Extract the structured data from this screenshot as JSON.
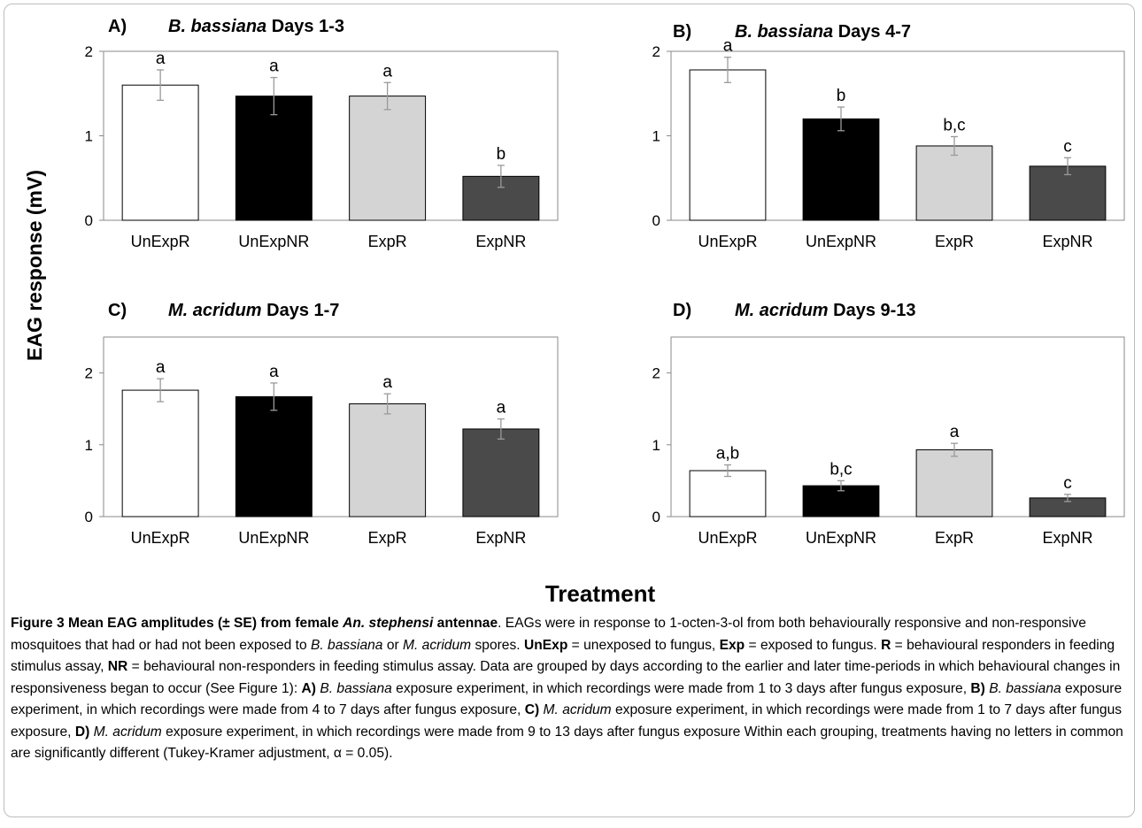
{
  "figure": {
    "ylabel": "EAG response (mV)",
    "xlabel": "Treatment",
    "colors": {
      "UnExpR": "#ffffff",
      "UnExpNR": "#000000",
      "ExpR": "#d4d4d4",
      "ExpNR": "#4a4a4a",
      "error_bar": "#9a9a9a"
    }
  },
  "chart_data": [
    {
      "type": "bar",
      "panel_letter": "A)",
      "title_italic": "B. bassiana",
      "title_rest": " Days 1-3",
      "categories": [
        "UnExpR",
        "UnExpNR",
        "ExpR",
        "ExpNR"
      ],
      "values": [
        1.6,
        1.47,
        1.47,
        0.52
      ],
      "errors": [
        0.18,
        0.22,
        0.16,
        0.13
      ],
      "letters": [
        "a",
        "a",
        "a",
        "b"
      ],
      "yticks": [
        "0",
        "1",
        "2"
      ],
      "ylim": [
        0,
        2
      ]
    },
    {
      "type": "bar",
      "panel_letter": "B)",
      "title_italic": "B. bassiana",
      "title_rest": " Days 4-7",
      "categories": [
        "UnExpR",
        "UnExpNR",
        "ExpR",
        "ExpNR"
      ],
      "values": [
        1.78,
        1.2,
        0.88,
        0.64
      ],
      "errors": [
        0.15,
        0.14,
        0.11,
        0.1
      ],
      "letters": [
        "a",
        "b",
        "b,c",
        "c"
      ],
      "yticks": [
        "0",
        "1",
        "2"
      ],
      "ylim": [
        0,
        2
      ]
    },
    {
      "type": "bar",
      "panel_letter": "C)",
      "title_italic": "M. acridum",
      "title_rest": "  Days 1-7",
      "categories": [
        "UnExpR",
        "UnExpNR",
        "ExpR",
        "ExpNR"
      ],
      "values": [
        1.76,
        1.67,
        1.57,
        1.22
      ],
      "errors": [
        0.16,
        0.19,
        0.14,
        0.14
      ],
      "letters": [
        "a",
        "a",
        "a",
        "a"
      ],
      "yticks": [
        "0",
        "1",
        "2"
      ],
      "ylim": [
        0,
        2.5
      ]
    },
    {
      "type": "bar",
      "panel_letter": "D)",
      "title_italic": "M. acridum",
      "title_rest": " Days 9-13",
      "categories": [
        "UnExpR",
        "UnExpNR",
        "ExpR",
        "ExpNR"
      ],
      "values": [
        0.64,
        0.43,
        0.93,
        0.26
      ],
      "errors": [
        0.08,
        0.07,
        0.09,
        0.05
      ],
      "letters": [
        "a,b",
        "b,c",
        "a",
        "c"
      ],
      "yticks": [
        "0",
        "1",
        "2"
      ],
      "ylim": [
        0,
        2.5
      ]
    }
  ],
  "caption": {
    "label": "Figure 3 Mean EAG amplitudes (± SE) from female ",
    "label_italic": "An. stephensi",
    "label_end": " antennae",
    "s01": ". EAGs were in response to 1-octen-3-ol from both behaviourally responsive and non-responsive mosquitoes that had or had not been exposed to ",
    "s02": "B. bassiana",
    "s03": " or ",
    "s04": "M. acridum",
    "s05": " spores. ",
    "s06": "UnExp",
    "s07": " = unexposed to fungus, ",
    "s08": "Exp",
    "s09": " = exposed to fungus. ",
    "s10": "R",
    "s11": " = behavioural responders in feeding stimulus assay, ",
    "s12": "NR",
    "s13": " = behavioural non-responders in feeding stimulus assay. Data are grouped by days according to the earlier and later time-periods in which behavioural changes in responsiveness began to occur (See Figure 1): ",
    "s14": "A)",
    "s15": " ",
    "s16": "B. bassiana",
    "s17": " exposure experiment, in which recordings were made from 1 to 3 days after fungus exposure, ",
    "s18": "B)",
    "s19": " ",
    "s20": "B. bassiana",
    "s21": " exposure experiment, in which recordings were made from 4 to 7 days after fungus exposure, ",
    "s22": "C)",
    "s23": " ",
    "s24": "M. acridum",
    "s25": " exposure experiment, in which recordings were made from 1 to 7 days after fungus exposure, ",
    "s26": "D)",
    "s27": " ",
    "s28": "M. acridum",
    "s29": " exposure experiment, in which recordings were made from 9 to 13 days after fungus exposure Within each grouping, treatments having no letters in common are significantly different (Tukey-Kramer adjustment, α = 0.05)."
  }
}
